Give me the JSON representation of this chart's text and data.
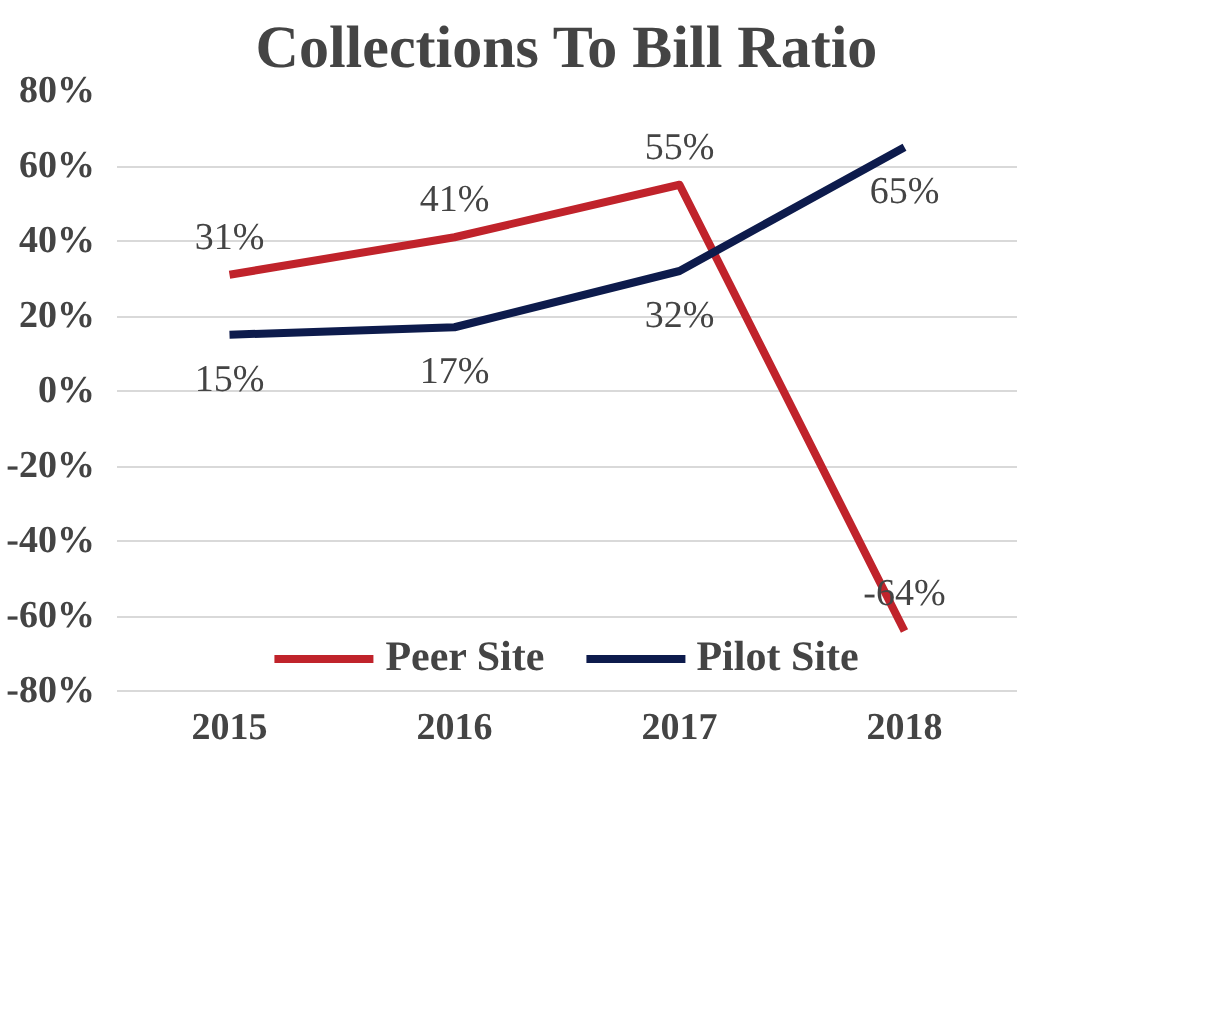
{
  "chart_data": {
    "type": "line",
    "title": "Collections To Bill Ratio",
    "categories": [
      "2015",
      "2016",
      "2017",
      "2018"
    ],
    "series": [
      {
        "name": "Peer Site",
        "color": "#c0232b",
        "values": [
          31,
          41,
          55,
          -64
        ],
        "value_labels": [
          "31%",
          "41%",
          "55%",
          "-64%"
        ]
      },
      {
        "name": "Pilot Site",
        "color": "#0d1b4c",
        "values": [
          15,
          17,
          32,
          65
        ],
        "value_labels": [
          "15%",
          "17%",
          "32%",
          "65%"
        ]
      }
    ],
    "ylim": [
      -80,
      80
    ],
    "yticks": [
      {
        "value": -80,
        "label": "-80%"
      },
      {
        "value": -60,
        "label": "-60%"
      },
      {
        "value": -40,
        "label": "-40%"
      },
      {
        "value": -20,
        "label": "-20%"
      },
      {
        "value": 0,
        "label": "0%"
      },
      {
        "value": 20,
        "label": "20%"
      },
      {
        "value": 40,
        "label": "40%"
      },
      {
        "value": 60,
        "label": "60%"
      },
      {
        "value": 80,
        "label": "80%"
      }
    ],
    "grid": "y",
    "legend": "bottom",
    "marker": "none",
    "line_style": "solid"
  }
}
